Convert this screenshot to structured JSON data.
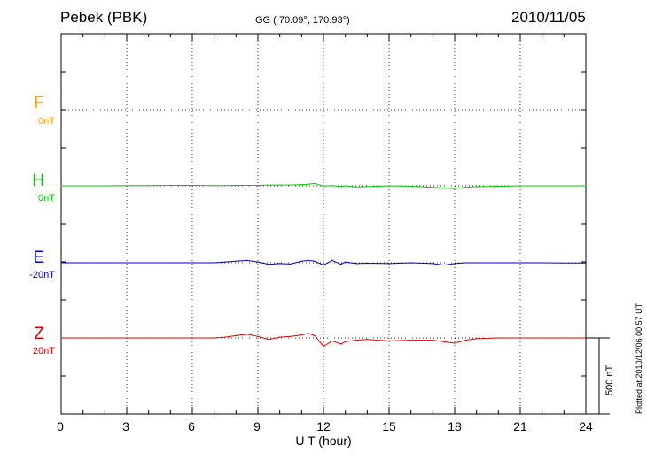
{
  "header": {
    "station": "Pebek (PBK)",
    "coords": "GG ( 70.09°, 170.93°)",
    "date": "2010/11/05"
  },
  "chart_data": {
    "type": "line",
    "xlabel": "U T (hour)",
    "xlim": [
      0,
      24
    ],
    "xticks": [
      0,
      3,
      6,
      9,
      12,
      15,
      18,
      21,
      24
    ],
    "x_tick_labels": [
      "0",
      "3",
      "6",
      "9",
      "12",
      "15",
      "18",
      "21",
      "24"
    ],
    "grid": true,
    "scale_bar_label": "500 nT",
    "scale_bar_nT": 500,
    "channels": [
      {
        "name": "F",
        "baseline_label": "0nT",
        "color": "#FFA500",
        "has_data": false
      },
      {
        "name": "H",
        "baseline_label": "0nT",
        "color": "#00CC00",
        "has_data": true
      },
      {
        "name": "E",
        "baseline_label": "-20nT",
        "color": "#0000CC",
        "has_data": true
      },
      {
        "name": "Z",
        "baseline_label": "20nT",
        "color": "#DD0000",
        "has_data": true
      }
    ],
    "x": [
      0,
      1,
      2,
      3,
      4,
      5,
      6,
      7,
      7.5,
      8,
      8.5,
      9,
      9.5,
      10,
      10.5,
      11,
      11.3,
      11.6,
      12,
      12.4,
      12.8,
      13,
      13.5,
      14,
      15,
      16,
      17,
      17.5,
      18,
      18.5,
      19,
      20,
      21,
      22,
      23,
      24
    ],
    "series": [
      {
        "name": "H",
        "values": [
          0,
          0,
          0,
          2,
          2,
          3,
          3,
          2,
          2,
          3,
          3,
          3,
          5,
          5,
          5,
          8,
          10,
          15,
          -2,
          2,
          -5,
          0,
          -8,
          -5,
          0,
          -3,
          -10,
          -15,
          -18,
          -10,
          -6,
          -3,
          0,
          0,
          0,
          0
        ]
      },
      {
        "name": "E",
        "values": [
          0,
          0,
          0,
          0,
          0,
          0,
          0,
          0,
          5,
          10,
          15,
          5,
          -10,
          -5,
          -8,
          10,
          15,
          10,
          -15,
          15,
          -10,
          5,
          -5,
          -3,
          -5,
          0,
          -5,
          -15,
          -5,
          0,
          0,
          0,
          0,
          0,
          -2,
          -2
        ]
      },
      {
        "name": "Z",
        "values": [
          0,
          0,
          0,
          0,
          0,
          0,
          0,
          0,
          5,
          15,
          25,
          10,
          -10,
          5,
          10,
          20,
          30,
          15,
          -55,
          -20,
          -40,
          -25,
          -15,
          -10,
          -20,
          -15,
          -15,
          -25,
          -35,
          -15,
          -5,
          0,
          0,
          0,
          0,
          0
        ]
      }
    ],
    "plotted_note": "Plotted at 2010/12/06 00:57 UT"
  }
}
